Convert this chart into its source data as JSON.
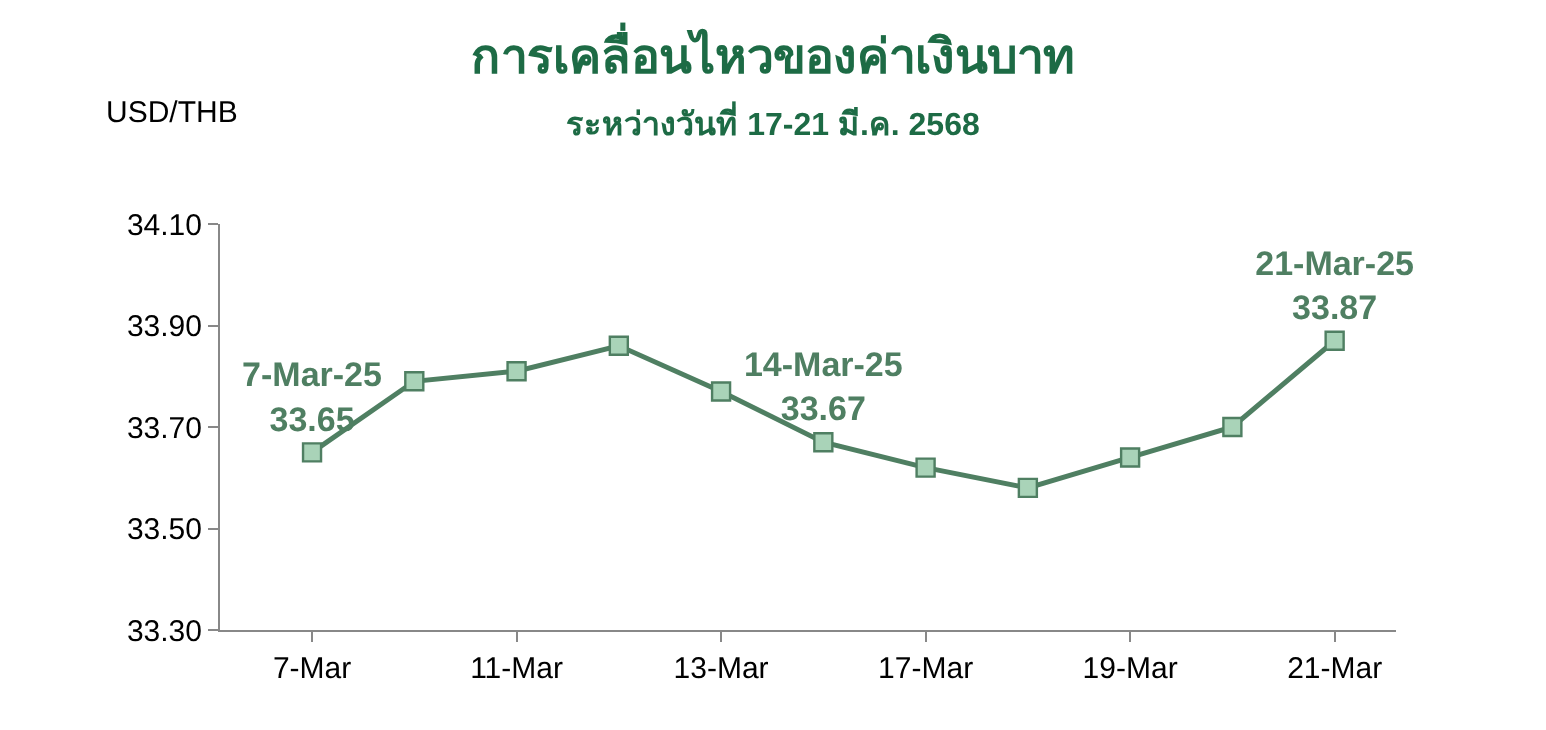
{
  "chart_data": {
    "type": "line",
    "title": "การเคลื่อนไหวของค่าเงินบาท",
    "subtitle": "ระหว่างวันที่ 17-21 มี.ค. 2568",
    "ylabel": "USD/THB",
    "categories": [
      "7-Mar",
      null,
      "11-Mar",
      null,
      "13-Mar",
      null,
      "17-Mar",
      null,
      "19-Mar",
      null,
      "21-Mar"
    ],
    "series": [
      {
        "color": "#4f7f62",
        "values": [
          33.65,
          33.79,
          33.81,
          33.86,
          33.77,
          33.67,
          33.62,
          33.58,
          33.64,
          33.7,
          33.87
        ],
        "value_labels": [
          "7-Mar-25\n33.65",
          null,
          null,
          null,
          null,
          "14-Mar-25\n33.67",
          null,
          null,
          null,
          null,
          "21-Mar-25\n33.87"
        ]
      }
    ],
    "ylim": [
      33.3,
      34.1
    ],
    "yticks": [
      {
        "value": 33.3,
        "label": "33.30"
      },
      {
        "value": 33.5,
        "label": "33.50"
      },
      {
        "value": 33.7,
        "label": "33.70"
      },
      {
        "value": 33.9,
        "label": "33.90"
      },
      {
        "value": 34.1,
        "label": "34.10"
      }
    ],
    "marker": "square",
    "line_style": "solid",
    "legend": false
  }
}
